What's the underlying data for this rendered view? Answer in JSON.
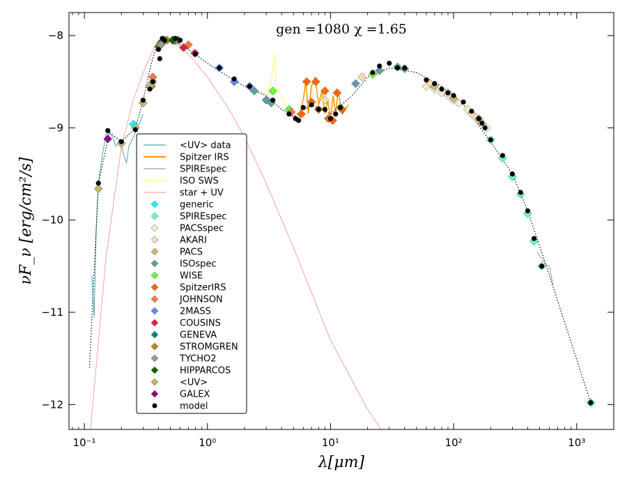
{
  "chart_data": {
    "type": "scatter",
    "title": "gen =1080  χ =1.65",
    "xlabel": "λ[μm]",
    "ylabel": "νF_ν [erg/cm²/s]",
    "x_scale": "log",
    "xlim": [
      0.075,
      2000
    ],
    "ylim": [
      -12.27,
      -7.75
    ],
    "x_ticks": [
      0.1,
      1,
      10,
      100,
      1000
    ],
    "x_tick_labels": [
      "10⁻¹",
      "10⁰",
      "10¹",
      "10²",
      "10³"
    ],
    "y_ticks": [
      -12,
      -11,
      -10,
      -9,
      -8
    ],
    "y_tick_labels": [
      "−12",
      "−11",
      "−10",
      "−9",
      "−8"
    ],
    "grid": false,
    "legend_position": "left",
    "line_series": [
      {
        "name": "<UV> data",
        "color": "#2a8fa0",
        "points": [
          [
            0.115,
            -10.6
          ],
          [
            0.12,
            -11.05
          ],
          [
            0.125,
            -10.1
          ],
          [
            0.13,
            -9.6
          ],
          [
            0.14,
            -9.3
          ],
          [
            0.15,
            -9.07
          ],
          [
            0.16,
            -9.05
          ],
          [
            0.17,
            -9.1
          ],
          [
            0.18,
            -9.2
          ],
          [
            0.19,
            -9.15
          ],
          [
            0.2,
            -9.2
          ],
          [
            0.21,
            -9.3
          ],
          [
            0.22,
            -9.38
          ],
          [
            0.23,
            -9.2
          ],
          [
            0.25,
            -9.1
          ],
          [
            0.28,
            -8.95
          ],
          [
            0.3,
            -8.85
          ]
        ]
      },
      {
        "name": "Spitzer IRS",
        "color": "#ff9900",
        "points": [
          [
            5.5,
            -8.9
          ],
          [
            6,
            -8.7
          ],
          [
            6.3,
            -8.5
          ],
          [
            6.6,
            -8.85
          ],
          [
            7,
            -8.55
          ],
          [
            7.5,
            -8.45
          ],
          [
            8,
            -8.75
          ],
          [
            8.5,
            -8.6
          ],
          [
            9,
            -8.85
          ],
          [
            9.5,
            -8.7
          ],
          [
            10,
            -8.9
          ],
          [
            10.5,
            -8.65
          ],
          [
            11,
            -8.85
          ],
          [
            11.5,
            -8.6
          ],
          [
            12.5,
            -8.85
          ],
          [
            14,
            -8.75
          ]
        ]
      },
      {
        "name": "SPIREspec",
        "color": "#808080",
        "points": [
          [
            480,
            -10.35
          ],
          [
            520,
            -10.42
          ],
          [
            560,
            -10.48
          ],
          [
            600,
            -10.5
          ],
          [
            640,
            -10.7
          ]
        ]
      },
      {
        "name": "ISO SWS",
        "color": "#ffff44",
        "points": [
          [
            2.4,
            -8.6
          ],
          [
            3,
            -8.65
          ],
          [
            3.3,
            -8.5
          ],
          [
            3.5,
            -8.2
          ],
          [
            3.6,
            -8.55
          ],
          [
            4,
            -8.65
          ],
          [
            4.5,
            -8.8
          ],
          [
            5,
            -8.85
          ]
        ]
      },
      {
        "name": "star + UV",
        "color": "#ff8888",
        "points": [
          [
            0.11,
            -12.4
          ],
          [
            0.15,
            -10.4
          ],
          [
            0.2,
            -9.2
          ],
          [
            0.25,
            -8.7
          ],
          [
            0.3,
            -8.4
          ],
          [
            0.35,
            -8.2
          ],
          [
            0.4,
            -8.05
          ],
          [
            0.5,
            -8.05
          ],
          [
            0.7,
            -8.2
          ],
          [
            1,
            -8.45
          ],
          [
            1.5,
            -8.8
          ],
          [
            2,
            -9.1
          ],
          [
            3,
            -9.6
          ],
          [
            5,
            -10.3
          ],
          [
            10,
            -11.3
          ],
          [
            20,
            -12.05
          ],
          [
            30,
            -12.4
          ]
        ]
      }
    ],
    "model_line": {
      "color": "#000000",
      "style": "dotted",
      "points": [
        [
          0.11,
          -11.6
        ],
        [
          0.13,
          -9.6
        ],
        [
          0.16,
          -9.05
        ],
        [
          0.2,
          -9.15
        ],
        [
          0.26,
          -9.0
        ],
        [
          0.3,
          -8.7
        ],
        [
          0.35,
          -8.3
        ],
        [
          0.4,
          -8.05
        ],
        [
          0.5,
          -8.04
        ],
        [
          0.7,
          -8.15
        ],
        [
          1,
          -8.3
        ],
        [
          1.5,
          -8.45
        ],
        [
          2,
          -8.55
        ],
        [
          3,
          -8.65
        ],
        [
          4,
          -8.8
        ],
        [
          5,
          -8.88
        ],
        [
          7,
          -8.75
        ],
        [
          10,
          -8.85
        ],
        [
          15,
          -8.65
        ],
        [
          20,
          -8.45
        ],
        [
          30,
          -8.35
        ],
        [
          50,
          -8.4
        ],
        [
          80,
          -8.55
        ],
        [
          120,
          -8.75
        ],
        [
          200,
          -9.15
        ],
        [
          300,
          -9.5
        ],
        [
          400,
          -9.9
        ],
        [
          600,
          -10.6
        ],
        [
          1300,
          -11.98
        ]
      ]
    },
    "scatter_series": [
      {
        "name": "generic",
        "color": "#00ffff",
        "points": [
          [
            0.25,
            -8.96
          ],
          [
            1300,
            -11.98
          ]
        ]
      },
      {
        "name": "SPIREspec",
        "color": "#66ffcc",
        "points": [
          [
            200,
            -9.13
          ],
          [
            250,
            -9.33
          ],
          [
            300,
            -9.53
          ],
          [
            350,
            -9.72
          ],
          [
            400,
            -9.93
          ],
          [
            450,
            -10.23
          ],
          [
            520,
            -10.5
          ]
        ]
      },
      {
        "name": "PACSspec",
        "color": "#f0f0d0",
        "points": [
          [
            60,
            -8.55
          ],
          [
            70,
            -8.58
          ],
          [
            80,
            -8.62
          ],
          [
            90,
            -8.65
          ],
          [
            100,
            -8.7
          ],
          [
            110,
            -8.73
          ],
          [
            130,
            -8.8
          ],
          [
            150,
            -8.88
          ],
          [
            170,
            -8.95
          ],
          [
            185,
            -9.0
          ]
        ]
      },
      {
        "name": "AKARI",
        "color": "#ffdcb4",
        "points": [
          [
            9,
            -8.7
          ],
          [
            18,
            -8.45
          ],
          [
            65,
            -8.52
          ],
          [
            90,
            -8.62
          ],
          [
            140,
            -8.85
          ],
          [
            160,
            -8.92
          ]
        ]
      },
      {
        "name": "PACS",
        "color": "#d2b478",
        "points": [
          [
            70,
            -8.55
          ],
          [
            100,
            -8.68
          ],
          [
            160,
            -8.9
          ]
        ]
      },
      {
        "name": "ISOspec",
        "color": "#5f9ea0",
        "points": [
          [
            2.4,
            -8.6
          ],
          [
            3,
            -8.7
          ],
          [
            3.3,
            -8.73
          ],
          [
            16,
            -8.52
          ],
          [
            25,
            -8.38
          ],
          [
            35,
            -8.34
          ],
          [
            40,
            -8.36
          ]
        ]
      },
      {
        "name": "WISE",
        "color": "#66ff33",
        "points": [
          [
            3.4,
            -8.6
          ],
          [
            4.6,
            -8.8
          ],
          [
            12,
            -8.78
          ],
          [
            22,
            -8.42
          ]
        ]
      },
      {
        "name": "SpitzerIRS",
        "color": "#ff6600",
        "points": [
          [
            5.8,
            -8.85
          ],
          [
            6.4,
            -8.5
          ],
          [
            7,
            -8.72
          ],
          [
            7.6,
            -8.5
          ],
          [
            8,
            -8.8
          ],
          [
            9,
            -8.6
          ],
          [
            9.6,
            -8.9
          ],
          [
            10.4,
            -8.92
          ],
          [
            11.3,
            -8.62
          ],
          [
            12.4,
            -8.8
          ]
        ]
      },
      {
        "name": "JOHNSON",
        "color": "#ff7744",
        "points": [
          [
            0.36,
            -8.45
          ],
          [
            0.44,
            -8.06
          ],
          [
            0.55,
            -8.05
          ],
          [
            0.7,
            -8.1
          ],
          [
            4.8,
            -8.83
          ]
        ]
      },
      {
        "name": "2MASS",
        "color": "#6688ff",
        "points": [
          [
            1.25,
            -8.35
          ],
          [
            1.65,
            -8.5
          ],
          [
            2.2,
            -8.55
          ]
        ]
      },
      {
        "name": "COUSINS",
        "color": "#dd2244",
        "points": [
          [
            0.64,
            -8.13
          ],
          [
            0.79,
            -8.19
          ]
        ]
      },
      {
        "name": "GENEVA",
        "color": "#008888",
        "points": [
          [
            0.35,
            -8.55
          ],
          [
            0.4,
            -8.12
          ],
          [
            0.42,
            -8.08
          ],
          [
            0.45,
            -8.05
          ],
          [
            0.54,
            -8.05
          ],
          [
            0.58,
            -8.05
          ]
        ]
      },
      {
        "name": "STROMGREN",
        "color": "#b8860b",
        "points": [
          [
            0.35,
            -8.55
          ],
          [
            0.41,
            -8.1
          ],
          [
            0.47,
            -8.05
          ],
          [
            0.55,
            -8.05
          ]
        ]
      },
      {
        "name": "TYCHO2",
        "color": "#999999",
        "points": [
          [
            0.42,
            -8.1
          ],
          [
            0.53,
            -8.05
          ]
        ]
      },
      {
        "name": "HIPPARCOS",
        "color": "#006600",
        "points": [
          [
            0.52,
            -8.05
          ]
        ]
      },
      {
        "name": "<UV>",
        "color": "#bdb76b",
        "points": [
          [
            0.13,
            -9.66
          ],
          [
            0.2,
            -9.17
          ],
          [
            0.26,
            -9.0
          ],
          [
            0.3,
            -8.73
          ],
          [
            0.34,
            -8.55
          ],
          [
            0.36,
            -8.5
          ]
        ]
      },
      {
        "name": "GALEX",
        "color": "#8b008b",
        "points": [
          [
            0.155,
            -9.12
          ]
        ]
      }
    ],
    "model_points": {
      "name": "model",
      "color": "#000000",
      "points": [
        [
          0.13,
          -9.6
        ],
        [
          0.155,
          -9.03
        ],
        [
          0.2,
          -9.15
        ],
        [
          0.26,
          -9.02
        ],
        [
          0.3,
          -8.7
        ],
        [
          0.34,
          -8.58
        ],
        [
          0.36,
          -8.5
        ],
        [
          0.4,
          -8.15
        ],
        [
          0.41,
          -8.25
        ],
        [
          0.43,
          -8.03
        ],
        [
          0.45,
          -8.05
        ],
        [
          0.55,
          -8.03
        ],
        [
          0.6,
          -8.05
        ],
        [
          0.8,
          -8.2
        ],
        [
          1.25,
          -8.35
        ],
        [
          1.65,
          -8.47
        ],
        [
          2.2,
          -8.55
        ],
        [
          3.4,
          -8.7
        ],
        [
          4.6,
          -8.85
        ],
        [
          5.2,
          -8.9
        ],
        [
          5.5,
          -8.92
        ],
        [
          6,
          -8.78
        ],
        [
          7,
          -8.75
        ],
        [
          8,
          -8.8
        ],
        [
          9,
          -8.8
        ],
        [
          10,
          -8.9
        ],
        [
          11,
          -8.85
        ],
        [
          12,
          -8.78
        ],
        [
          22,
          -8.4
        ],
        [
          25,
          -8.33
        ],
        [
          30,
          -8.3
        ],
        [
          35,
          -8.35
        ],
        [
          40,
          -8.35
        ],
        [
          60,
          -8.48
        ],
        [
          70,
          -8.52
        ],
        [
          80,
          -8.58
        ],
        [
          90,
          -8.62
        ],
        [
          100,
          -8.65
        ],
        [
          120,
          -8.72
        ],
        [
          140,
          -8.82
        ],
        [
          160,
          -8.9
        ],
        [
          170,
          -8.95
        ],
        [
          180,
          -9.0
        ],
        [
          200,
          -9.13
        ],
        [
          250,
          -9.3
        ],
        [
          300,
          -9.5
        ],
        [
          350,
          -9.7
        ],
        [
          400,
          -9.9
        ],
        [
          450,
          -10.2
        ],
        [
          520,
          -10.5
        ],
        [
          1300,
          -11.98
        ]
      ]
    },
    "legend": [
      {
        "label": "<UV> data",
        "kind": "line",
        "color": "#2a8fa0"
      },
      {
        "label": "Spitzer IRS",
        "kind": "line",
        "color": "#ff9900"
      },
      {
        "label": "SPIREspec",
        "kind": "line",
        "color": "#808080"
      },
      {
        "label": "ISO SWS",
        "kind": "line",
        "color": "#ffff44"
      },
      {
        "label": "star + UV",
        "kind": "line",
        "color": "#ff8888"
      },
      {
        "label": "generic",
        "kind": "diamond",
        "color": "#00ffff"
      },
      {
        "label": "SPIREspec",
        "kind": "diamond",
        "color": "#66ffcc"
      },
      {
        "label": "PACSspec",
        "kind": "diamond",
        "color": "#f0f0d0"
      },
      {
        "label": "AKARI",
        "kind": "diamond",
        "color": "#ffdcb4"
      },
      {
        "label": "PACS",
        "kind": "diamond",
        "color": "#d2b478"
      },
      {
        "label": "ISOspec",
        "kind": "diamond",
        "color": "#5f9ea0"
      },
      {
        "label": "WISE",
        "kind": "diamond",
        "color": "#66ff33"
      },
      {
        "label": "SpitzerIRS",
        "kind": "diamond",
        "color": "#ff6600"
      },
      {
        "label": "JOHNSON",
        "kind": "diamond",
        "color": "#ff7744"
      },
      {
        "label": "2MASS",
        "kind": "diamond",
        "color": "#6688ff"
      },
      {
        "label": "COUSINS",
        "kind": "diamond",
        "color": "#dd2244"
      },
      {
        "label": "GENEVA",
        "kind": "diamond",
        "color": "#008888"
      },
      {
        "label": "STROMGREN",
        "kind": "diamond",
        "color": "#b8860b"
      },
      {
        "label": "TYCHO2",
        "kind": "diamond",
        "color": "#999999"
      },
      {
        "label": "HIPPARCOS",
        "kind": "diamond",
        "color": "#006600"
      },
      {
        "label": "<UV>",
        "kind": "diamond",
        "color": "#bdb76b"
      },
      {
        "label": "GALEX",
        "kind": "diamond",
        "color": "#8b008b"
      },
      {
        "label": "model",
        "kind": "dot",
        "color": "#000000"
      }
    ]
  }
}
